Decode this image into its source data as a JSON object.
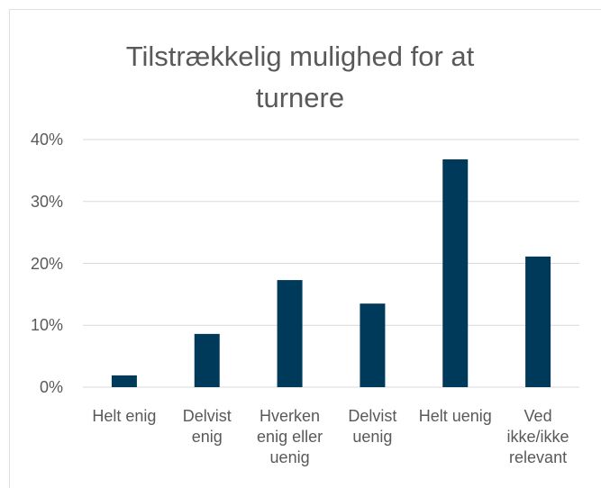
{
  "chart_data": {
    "type": "bar",
    "title": "Tilstrækkelig mulighed for at turnere",
    "categories": [
      "Helt enig",
      "Delvist enig",
      "Hverken enig eller uenig",
      "Delvist uenig",
      "Helt uenig",
      "Ved ikke/ikke relevant"
    ],
    "values": [
      1.9,
      8.6,
      17.3,
      13.5,
      36.8,
      21.1
    ],
    "color": "#003a5a",
    "ylim": [
      0,
      40
    ],
    "yticks": [
      {
        "value": 0,
        "label": "0%"
      },
      {
        "value": 10,
        "label": "10%"
      },
      {
        "value": 20,
        "label": "20%"
      },
      {
        "value": 30,
        "label": "30%"
      },
      {
        "value": 40,
        "label": "40%"
      }
    ],
    "grid": true
  }
}
